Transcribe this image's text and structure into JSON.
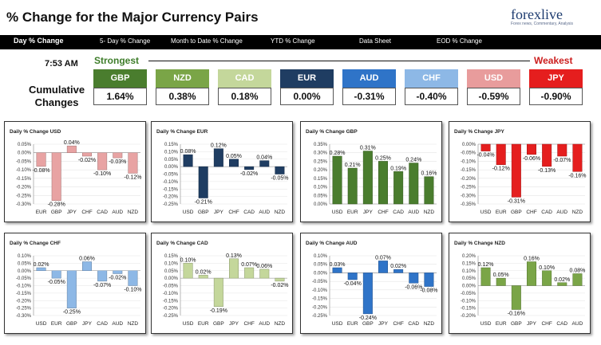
{
  "header": {
    "title": "% Change for the Major Currency Pairs",
    "logo_text": "forexlive",
    "logo_sub": "Forex news, Commentary, Analysis"
  },
  "nav": [
    {
      "label": "Day % Change",
      "active": true
    },
    {
      "label": "5- Day % Change",
      "active": false
    },
    {
      "label": "Month to Date % Change",
      "active": false
    },
    {
      "label": "YTD % Change",
      "active": false
    },
    {
      "label": "Data Sheet",
      "active": false
    },
    {
      "label": "EOD % Change",
      "active": false
    }
  ],
  "summary": {
    "time": "7:53 AM",
    "strongest": "Strongest",
    "weakest": "Weakest",
    "cumulative_label_1": "Cumulative",
    "cumulative_label_2": "Changes",
    "currencies": [
      {
        "code": "GBP",
        "value": "1.64%",
        "color": "#4a7d2e"
      },
      {
        "code": "NZD",
        "value": "0.38%",
        "color": "#7aa547"
      },
      {
        "code": "CAD",
        "value": "0.18%",
        "color": "#c4d79b"
      },
      {
        "code": "EUR",
        "value": "0.00%",
        "color": "#1f3d62"
      },
      {
        "code": "AUD",
        "value": "-0.31%",
        "color": "#2f74c8"
      },
      {
        "code": "CHF",
        "value": "-0.40%",
        "color": "#8db8e6"
      },
      {
        "code": "USD",
        "value": "-0.59%",
        "color": "#e89c9c"
      },
      {
        "code": "JPY",
        "value": "-0.90%",
        "color": "#e51e1e"
      }
    ]
  },
  "chart_data": [
    {
      "type": "bar",
      "title": "Daily % Change USD",
      "categories": [
        "EUR",
        "GBP",
        "JPY",
        "CHF",
        "CAD",
        "AUD",
        "NZD"
      ],
      "values": [
        -0.08,
        -0.28,
        0.04,
        -0.02,
        -0.1,
        -0.03,
        -0.12
      ],
      "labels": [
        "-0.08%",
        "-0.28%",
        "0.04%",
        "-0.02%",
        "-0.10%",
        "-0.03%",
        "-0.12%"
      ],
      "ylim": [
        -0.3,
        0.05
      ],
      "ticks": [
        0.05,
        0.0,
        -0.05,
        -0.1,
        -0.15,
        -0.2,
        -0.25,
        -0.3
      ],
      "color": "#e8a3a3"
    },
    {
      "type": "bar",
      "title": "Daily % Change EUR",
      "categories": [
        "USD",
        "GBP",
        "JPY",
        "CHF",
        "CAD",
        "AUD",
        "NZD"
      ],
      "values": [
        0.08,
        -0.21,
        0.12,
        0.05,
        -0.02,
        0.04,
        -0.05
      ],
      "labels": [
        "0.08%",
        "-0.21%",
        "0.12%",
        "0.05%",
        "-0.02%",
        "0.04%",
        "-0.05%"
      ],
      "ylim": [
        -0.25,
        0.15
      ],
      "ticks": [
        0.15,
        0.1,
        0.05,
        0.0,
        -0.05,
        -0.1,
        -0.15,
        -0.2,
        -0.25
      ],
      "color": "#1f3d62"
    },
    {
      "type": "bar",
      "title": "Daily % Change GBP",
      "categories": [
        "USD",
        "EUR",
        "JPY",
        "CHF",
        "CAD",
        "AUD",
        "NZD"
      ],
      "values": [
        0.28,
        0.21,
        0.31,
        0.25,
        0.19,
        0.24,
        0.16
      ],
      "labels": [
        "0.28%",
        "0.21%",
        "0.31%",
        "0.25%",
        "0.19%",
        "0.24%",
        "0.16%"
      ],
      "ylim": [
        0.0,
        0.35
      ],
      "ticks": [
        0.35,
        0.3,
        0.25,
        0.2,
        0.15,
        0.1,
        0.05,
        0.0
      ],
      "color": "#4a7d2e"
    },
    {
      "type": "bar",
      "title": "Daily % Change JPY",
      "categories": [
        "USD",
        "EUR",
        "GBP",
        "CHF",
        "CAD",
        "AUD",
        "NZD"
      ],
      "values": [
        -0.04,
        -0.12,
        -0.31,
        -0.06,
        -0.13,
        -0.07,
        -0.16
      ],
      "labels": [
        "-0.04%",
        "-0.12%",
        "-0.31%",
        "-0.06%",
        "-0.13%",
        "-0.07%",
        "-0.16%"
      ],
      "ylim": [
        -0.35,
        0.0
      ],
      "ticks": [
        0.0,
        -0.05,
        -0.1,
        -0.15,
        -0.2,
        -0.25,
        -0.3,
        -0.35
      ],
      "color": "#e51e1e"
    },
    {
      "type": "bar",
      "title": "Daily % Change CHF",
      "categories": [
        "USD",
        "EUR",
        "GBP",
        "JPY",
        "CAD",
        "AUD",
        "NZD"
      ],
      "values": [
        0.02,
        -0.05,
        -0.25,
        0.06,
        -0.07,
        -0.02,
        -0.1
      ],
      "labels": [
        "0.02%",
        "-0.05%",
        "-0.25%",
        "0.06%",
        "-0.07%",
        "-0.02%",
        "-0.10%"
      ],
      "ylim": [
        -0.3,
        0.1
      ],
      "ticks": [
        0.1,
        0.05,
        0.0,
        -0.05,
        -0.1,
        -0.15,
        -0.2,
        -0.25,
        -0.3
      ],
      "color": "#8db8e6"
    },
    {
      "type": "bar",
      "title": "Daily % Change CAD",
      "categories": [
        "USD",
        "EUR",
        "GBP",
        "JPY",
        "CHF",
        "AUD",
        "NZD"
      ],
      "values": [
        0.1,
        0.02,
        -0.19,
        0.13,
        0.07,
        0.06,
        -0.02
      ],
      "labels": [
        "0.10%",
        "0.02%",
        "-0.19%",
        "0.13%",
        "0.07%",
        "0.06%",
        "-0.02%"
      ],
      "ylim": [
        -0.25,
        0.15
      ],
      "ticks": [
        0.15,
        0.1,
        0.05,
        0.0,
        -0.05,
        -0.1,
        -0.15,
        -0.2,
        -0.25
      ],
      "color": "#c4d79b"
    },
    {
      "type": "bar",
      "title": "Daily % Change AUD",
      "categories": [
        "USD",
        "EUR",
        "GBP",
        "JPY",
        "CHF",
        "CAD",
        "NZD"
      ],
      "values": [
        0.03,
        -0.04,
        -0.24,
        0.07,
        0.02,
        -0.06,
        -0.08
      ],
      "labels": [
        "0.03%",
        "-0.04%",
        "-0.24%",
        "0.07%",
        "0.02%",
        "-0.06%",
        "-0.08%"
      ],
      "ylim": [
        -0.25,
        0.1
      ],
      "ticks": [
        0.1,
        0.05,
        0.0,
        -0.05,
        -0.1,
        -0.15,
        -0.2,
        -0.25
      ],
      "color": "#2f74c8"
    },
    {
      "type": "bar",
      "title": "Daily % Change NZD",
      "categories": [
        "USD",
        "EUR",
        "GBP",
        "JPY",
        "CHF",
        "CAD",
        "AUD"
      ],
      "values": [
        0.12,
        0.05,
        -0.16,
        0.16,
        0.1,
        0.02,
        0.08
      ],
      "labels": [
        "0.12%",
        "0.05%",
        "-0.16%",
        "0.16%",
        "0.10%",
        "0.02%",
        "0.08%"
      ],
      "ylim": [
        -0.2,
        0.2
      ],
      "ticks": [
        0.2,
        0.15,
        0.1,
        0.05,
        0.0,
        -0.05,
        -0.1,
        -0.15,
        -0.2
      ],
      "color": "#7aa547"
    }
  ]
}
